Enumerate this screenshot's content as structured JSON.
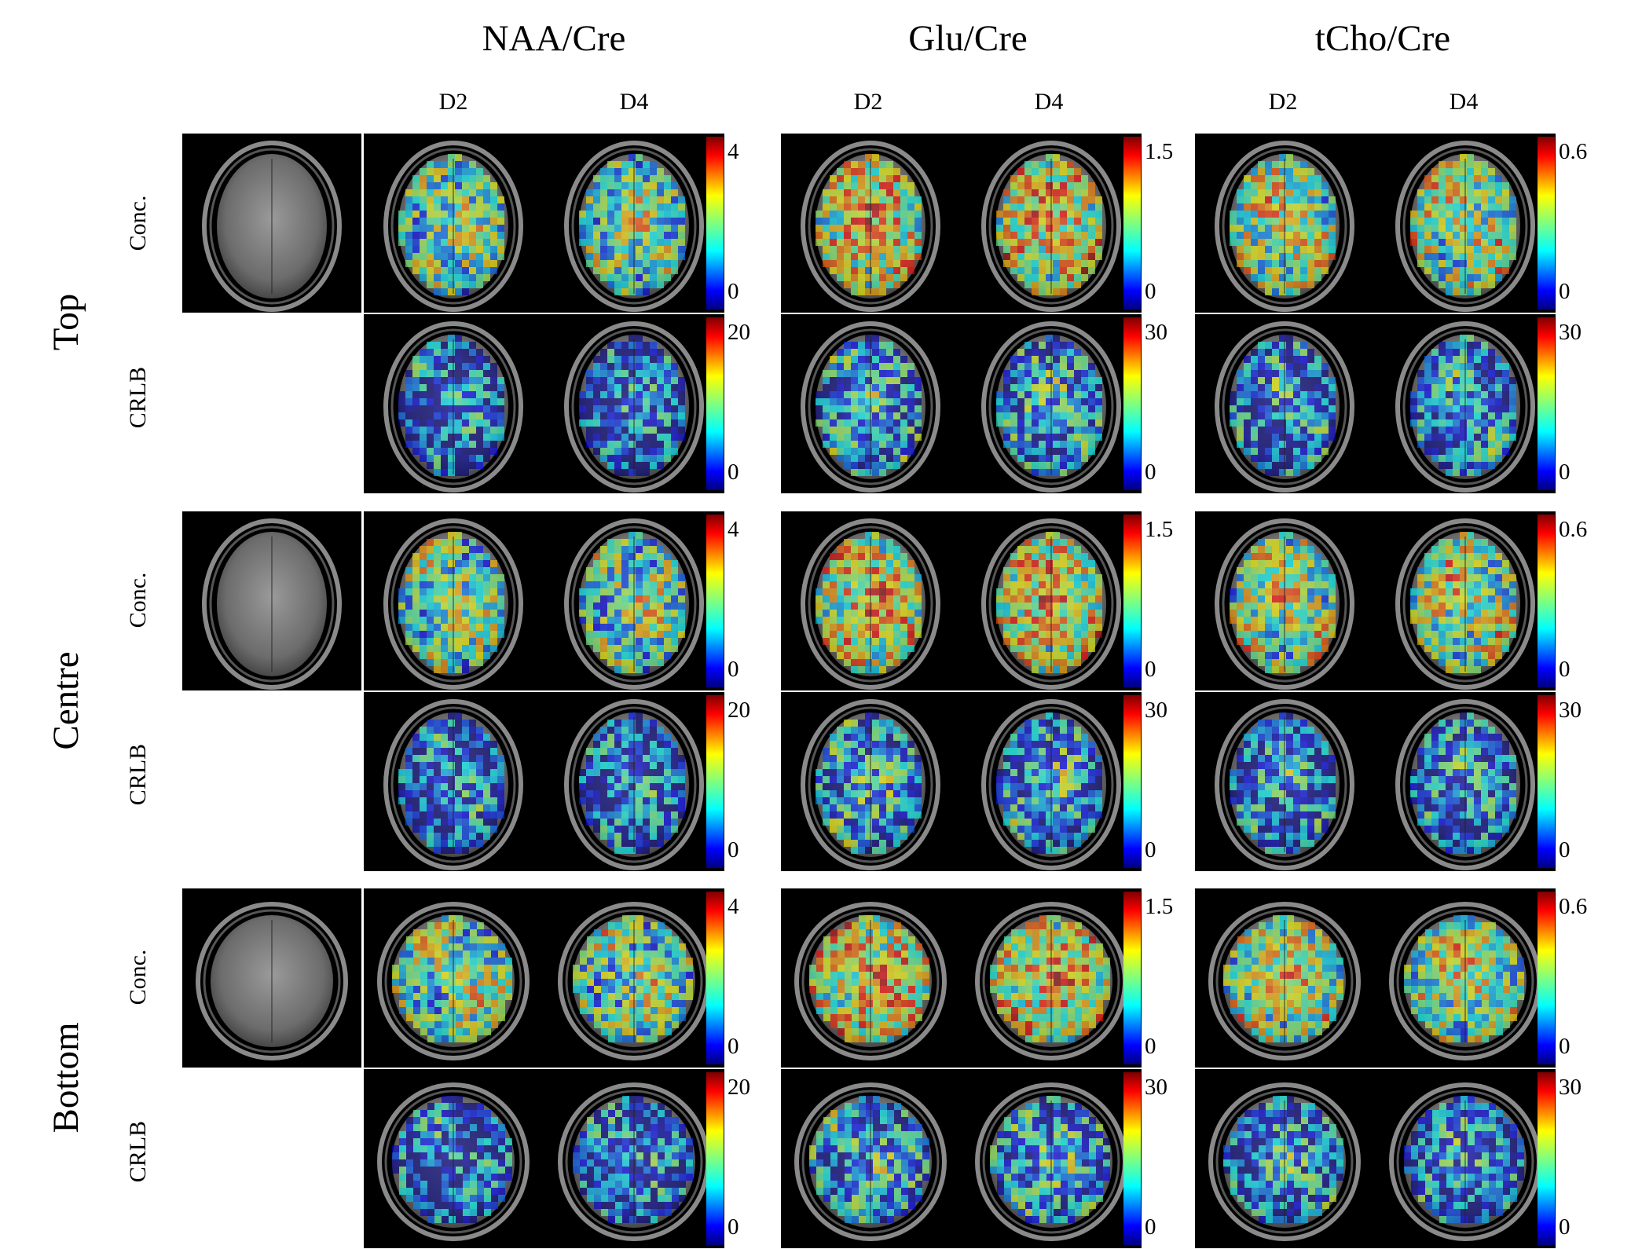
{
  "metabolites": [
    {
      "title": "NAA/Cre",
      "days": [
        "D2",
        "D4"
      ],
      "conc_scale": {
        "max": "4",
        "min": "0"
      },
      "crlb_scale": {
        "max": "20",
        "min": "0"
      }
    },
    {
      "title": "Glu/Cre",
      "days": [
        "D2",
        "D4"
      ],
      "conc_scale": {
        "max": "1.5",
        "min": "0"
      },
      "crlb_scale": {
        "max": "30",
        "min": "0"
      }
    },
    {
      "title": "tCho/Cre",
      "days": [
        "D2",
        "D4"
      ],
      "conc_scale": {
        "max": "0.6",
        "min": "0"
      },
      "crlb_scale": {
        "max": "30",
        "min": "0"
      }
    }
  ],
  "slices": [
    {
      "label": "Top"
    },
    {
      "label": "Centre"
    },
    {
      "label": "Bottom"
    }
  ],
  "map_types": {
    "conc": "Conc.",
    "crlb": "CRLB"
  },
  "colors": {
    "background": "#000000",
    "colormap": "jet"
  }
}
